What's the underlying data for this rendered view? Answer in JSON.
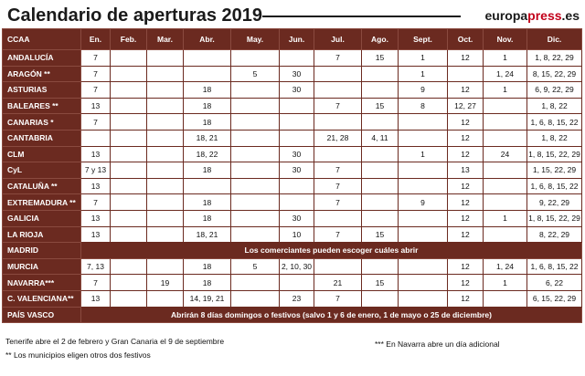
{
  "title": "Calendario de aperturas 2019",
  "brand": {
    "part1": "europa",
    "part2": "press",
    "part3": ".es"
  },
  "table": {
    "header_first": "CCAA",
    "months": [
      "En.",
      "Feb.",
      "Mar.",
      "Abr.",
      "May.",
      "Jun.",
      "Jul.",
      "Ago.",
      "Sept.",
      "Oct.",
      "Nov.",
      "Dic."
    ],
    "rows": [
      {
        "region": "ANDALUCÍA",
        "cells": [
          "7",
          "",
          "",
          "",
          "",
          "",
          "7",
          "15",
          "1",
          "12",
          "1",
          "1, 8, 22, 29"
        ]
      },
      {
        "region": "ARAGÓN **",
        "cells": [
          "7",
          "",
          "",
          "",
          "5",
          "30",
          "",
          "",
          "1",
          "",
          "1, 24",
          "8, 15, 22, 29"
        ]
      },
      {
        "region": "ASTURIAS",
        "cells": [
          "7",
          "",
          "",
          "18",
          "",
          "30",
          "",
          "",
          "9",
          "12",
          "1",
          "6, 9, 22, 29"
        ]
      },
      {
        "region": "BALEARES **",
        "cells": [
          "13",
          "",
          "",
          "18",
          "",
          "",
          "7",
          "15",
          "8",
          "12, 27",
          "",
          "1, 8, 22"
        ]
      },
      {
        "region": "CANARIAS *",
        "cells": [
          "7",
          "",
          "",
          "18",
          "",
          "",
          "",
          "",
          "",
          "12",
          "",
          "1, 6, 8, 15, 22"
        ]
      },
      {
        "region": "CANTABRIA",
        "cells": [
          "",
          "",
          "",
          "18, 21",
          "",
          "",
          "21, 28",
          "4, 11",
          "",
          "12",
          "",
          "1, 8, 22"
        ]
      },
      {
        "region": "CLM",
        "cells": [
          "13",
          "",
          "",
          "18, 22",
          "",
          "30",
          "",
          "",
          "1",
          "12",
          "24",
          "1, 8, 15, 22, 29"
        ]
      },
      {
        "region": "CyL",
        "cells": [
          "7 y 13",
          "",
          "",
          "18",
          "",
          "30",
          "7",
          "",
          "",
          "13",
          "",
          "1, 15, 22, 29"
        ]
      },
      {
        "region": "CATALUÑA **",
        "cells": [
          "13",
          "",
          "",
          "",
          "",
          "",
          "7",
          "",
          "",
          "12",
          "",
          "1, 6, 8, 15, 22"
        ]
      },
      {
        "region": "EXTREMADURA **",
        "cells": [
          "7",
          "",
          "",
          "18",
          "",
          "",
          "7",
          "",
          "9",
          "12",
          "",
          "9, 22, 29"
        ]
      },
      {
        "region": "GALICIA",
        "cells": [
          "13",
          "",
          "",
          "18",
          "",
          "30",
          "",
          "",
          "",
          "12",
          "1",
          "1, 8, 15, 22, 29"
        ]
      },
      {
        "region": "LA RIOJA",
        "cells": [
          "13",
          "",
          "",
          "18, 21",
          "",
          "10",
          "7",
          "15",
          "",
          "12",
          "",
          "8, 22, 29"
        ]
      },
      {
        "region": "MADRID",
        "note": "Los comerciantes pueden escoger cuáles abrir"
      },
      {
        "region": "MURCIA",
        "cells": [
          "7, 13",
          "",
          "",
          "18",
          "5",
          "2, 10, 30",
          "",
          "",
          "",
          "12",
          "1, 24",
          "1, 6, 8, 15, 22"
        ]
      },
      {
        "region": "NAVARRA***",
        "cells": [
          "7",
          "",
          "19",
          "18",
          "",
          "",
          "21",
          "15",
          "",
          "12",
          "1",
          "6, 22"
        ]
      },
      {
        "region": "C. VALENCIANA**",
        "cells": [
          "13",
          "",
          "",
          "14, 19, 21",
          "",
          "23",
          "7",
          "",
          "",
          "12",
          "",
          "6, 15, 22, 29"
        ]
      },
      {
        "region": "PAÍS VASCO",
        "note": "Abrirán 8 días domingos o festivos (salvo 1 y 6 de enero, 1 de mayo o 25 de diciembre)"
      }
    ]
  },
  "footnotes": {
    "canarias": "Tenerife abre el 2 de febrero y Gran Canaria el 9 de septiembre",
    "municipios": "** Los municipios eligen otros dos festivos",
    "navarra": "*** En Navarra abre un día adicional"
  }
}
